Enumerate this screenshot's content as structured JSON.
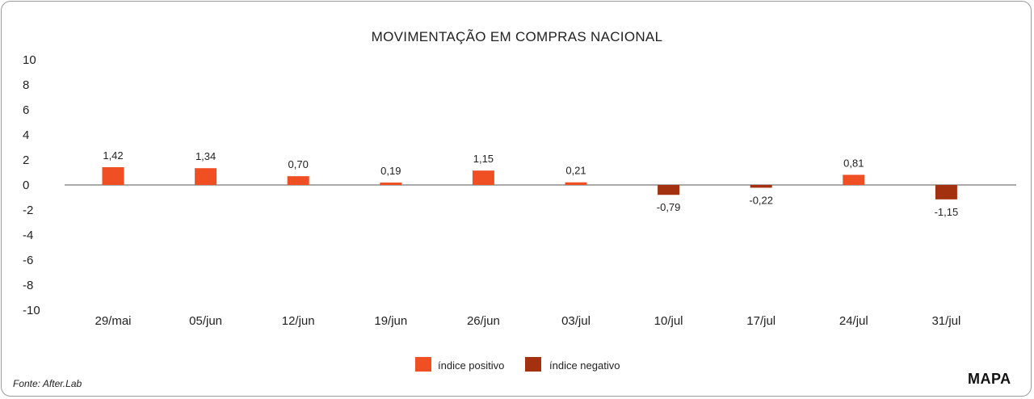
{
  "chart_data": {
    "type": "bar",
    "title": "MOVIMENTAÇÃO EM COMPRAS NACIONAL",
    "categories": [
      "29/mai",
      "05/jun",
      "12/jun",
      "19/jun",
      "26/jun",
      "03/jul",
      "10/jul",
      "17/jul",
      "24/jul",
      "31/jul"
    ],
    "values": [
      1.42,
      1.34,
      0.7,
      0.19,
      1.15,
      0.21,
      -0.79,
      -0.22,
      0.81,
      -1.15
    ],
    "value_labels": [
      "1,42",
      "1,34",
      "0,70",
      "0,19",
      "1,15",
      "0,21",
      "-0,79",
      "-0,22",
      "0,81",
      "-1,15"
    ],
    "ylim": [
      -10,
      10
    ],
    "yticks": [
      10,
      8,
      6,
      4,
      2,
      0,
      -2,
      -4,
      -6,
      -8,
      -10
    ],
    "ytick_labels": [
      "10",
      "8",
      "6",
      "4",
      "2",
      "0",
      "-2",
      "-4",
      "-6",
      "-8",
      "-10"
    ],
    "xlabel": "",
    "ylabel": "",
    "grid": false,
    "legend_position": "bottom-center",
    "series": [
      {
        "name": "índice positivo",
        "color": "#f04e23"
      },
      {
        "name": "índice negativo",
        "color": "#a3300e"
      }
    ]
  },
  "legend": {
    "positive_label": "índice positivo",
    "negative_label": "índice negativo"
  },
  "source": "Fonte: After.Lab",
  "logo": "MAPA"
}
